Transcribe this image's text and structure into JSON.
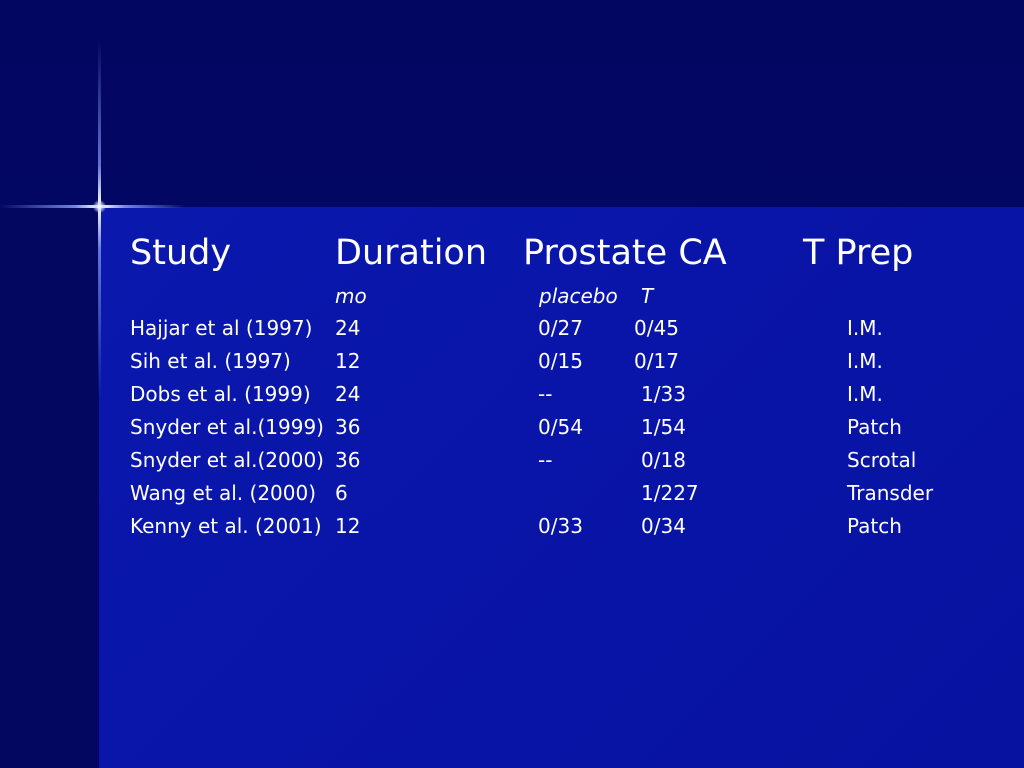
{
  "table": {
    "headers": {
      "study": "Study",
      "duration": "Duration",
      "prostate_ca": "Prostate CA",
      "t_prep": "T Prep"
    },
    "subheaders": {
      "duration": "mo",
      "placebo": "placebo",
      "t": "T"
    },
    "rows": [
      {
        "study": "Hajjar et al (1997)",
        "duration": "24",
        "placebo": "0/27",
        "t": "0/45",
        "prep": "I.M."
      },
      {
        "study": "Sih et al. (1997)",
        "duration": "12",
        "placebo": "0/15",
        "t": "0/17",
        "prep": "I.M."
      },
      {
        "study": "Dobs et al. (1999)",
        "duration": "24",
        "placebo": "--",
        "t": "1/33",
        "prep": "I.M."
      },
      {
        "study": "Snyder et al.(1999)",
        "duration": "36",
        "placebo": "0/54",
        "t": "1/54",
        "prep": "Patch"
      },
      {
        "study": "Snyder et al.(2000)",
        "duration": "36",
        "placebo": "--",
        "t": "0/18",
        "prep": "Scrotal"
      },
      {
        "study": "Wang et al. (2000)",
        "duration": "6",
        "placebo": "",
        "t": "1/227",
        "prep": "Transder"
      },
      {
        "study": "Kenny et al. (2001)",
        "duration": "12",
        "placebo": "0/33",
        "t": "0/34",
        "prep": "Patch"
      }
    ]
  }
}
